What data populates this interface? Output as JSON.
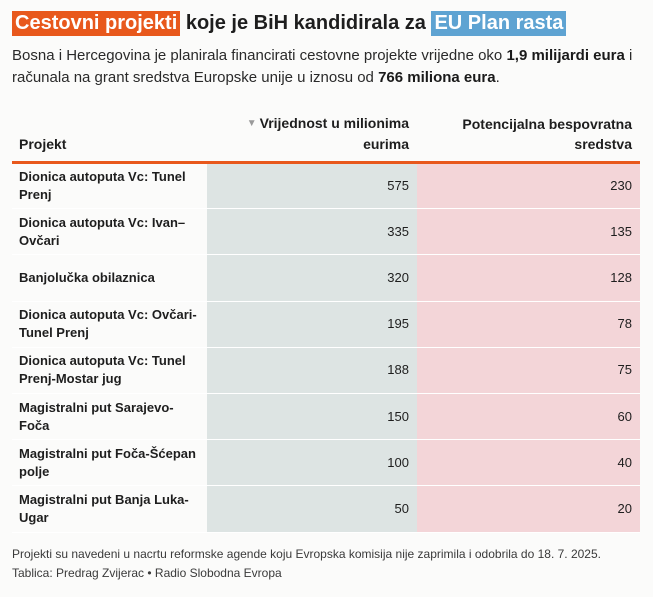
{
  "title": {
    "part1": "Cestovni projekti",
    "part2": " koje je BiH kandidirala za ",
    "part3": "EU Plan rasta"
  },
  "subtitle": {
    "text1": "Bosna i Hercegovina je planirala financirati cestovne projekte vrijedne oko ",
    "bold1": "1,9 milijardi eura",
    "text2": " i računala na grant sredstva Europske unije u iznosu od ",
    "bold2": "766 miliona eura",
    "text3": "."
  },
  "chart_data": {
    "type": "table",
    "columns": [
      "Projekt",
      "Vrijednost u milionima eurima",
      "Potencijalna bespovratna sredstva"
    ],
    "sorted_column": 1,
    "sort_icon": "sort-descending-icon",
    "rows": [
      {
        "project": "Dionica autoputa Vc: Tunel Prenj",
        "value": 575,
        "grant": 230
      },
      {
        "project": "Dionica autoputa Vc: Ivan–Ovčari",
        "value": 335,
        "grant": 135
      },
      {
        "project": "Banjolučka obilaznica",
        "value": 320,
        "grant": 128
      },
      {
        "project": "Dionica autoputa Vc: Ovčari-Tunel Prenj",
        "value": 195,
        "grant": 78
      },
      {
        "project": "Dionica autoputa Vc: Tunel Prenj-Mostar jug",
        "value": 188,
        "grant": 75
      },
      {
        "project": "Magistralni put Sarajevo-Foča",
        "value": 150,
        "grant": 60
      },
      {
        "project": "Magistralni put Foča-Šćepan polje",
        "value": 100,
        "grant": 40
      },
      {
        "project": "Magistralni put Banja Luka-Ugar",
        "value": 50,
        "grant": 20
      }
    ],
    "colors": {
      "accent": "#e8581c",
      "highlight_blue": "#5ea3d2",
      "value_column_bg": "#dde4e3",
      "grant_column_bg": "#f3d5d8"
    }
  },
  "notes": {
    "note": "Projekti su navedeni u nacrtu reformske agende koju Evropska komisija nije zaprimila i odobrila do 18. 7. 2025.",
    "source": "Tablica: Predrag Zvijerac • Radio Slobodna Evropa"
  }
}
